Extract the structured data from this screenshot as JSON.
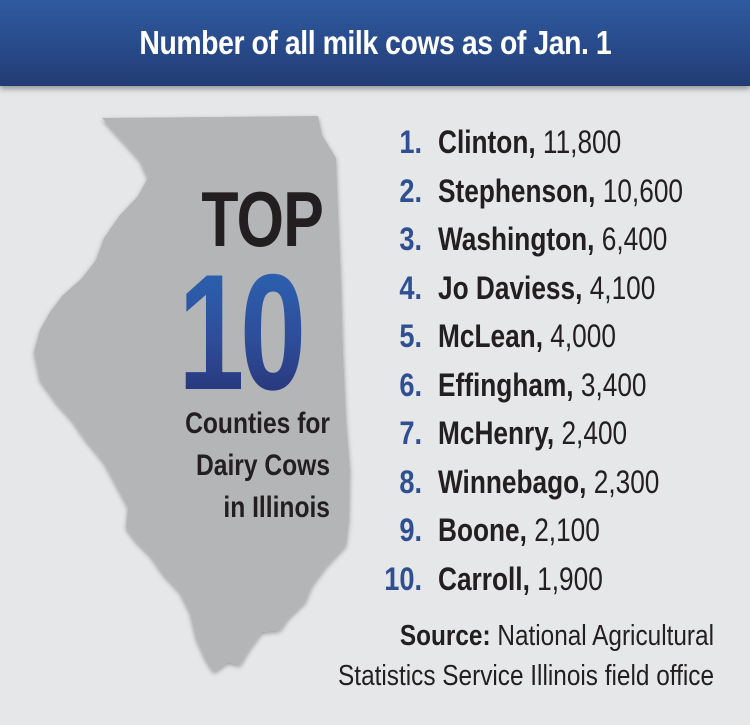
{
  "header": {
    "title": "Number of all milk cows as of Jan. 1"
  },
  "map": {
    "shape": "illinois-state-outline",
    "fill": "#b3b5b7"
  },
  "badge": {
    "top": "TOP",
    "number": "10",
    "subtitle_lines": [
      "Counties for",
      "Dairy Cows",
      "in Illinois"
    ]
  },
  "ranking": [
    {
      "rank": "1.",
      "county": "Clinton,",
      "count": "11,800"
    },
    {
      "rank": "2.",
      "county": "Stephenson,",
      "count": "10,600"
    },
    {
      "rank": "3.",
      "county": "Washington,",
      "count": "6,400"
    },
    {
      "rank": "4.",
      "county": "Jo Daviess,",
      "count": "4,100"
    },
    {
      "rank": "5.",
      "county": "McLean,",
      "count": "4,000"
    },
    {
      "rank": "6.",
      "county": "Effingham,",
      "count": "3,400"
    },
    {
      "rank": "7.",
      "county": "McHenry,",
      "count": "2,400"
    },
    {
      "rank": "8.",
      "county": "Winnebago,",
      "count": "2,300"
    },
    {
      "rank": "9.",
      "county": "Boone,",
      "count": "2,100"
    },
    {
      "rank": "10.",
      "county": "Carroll,",
      "count": "1,900"
    }
  ],
  "source": {
    "label": "Source:",
    "line1": "National Agricultural",
    "line2": "Statistics Service Illinois field office"
  },
  "colors": {
    "banner": "#284a8a",
    "rank_number": "#2f4f93",
    "background": "#e6e7e8",
    "ten_gradient_top": "#2b66b5",
    "ten_gradient_bottom": "#262f70"
  }
}
